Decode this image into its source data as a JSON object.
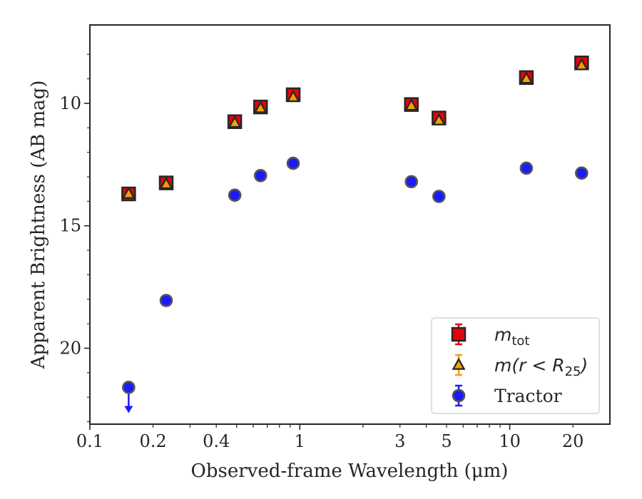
{
  "chart_data": {
    "type": "scatter",
    "title": "",
    "xlabel": "Observed-frame Wavelength (μm)",
    "ylabel": "Apparent Brightness (AB mag)",
    "x_scale": "log",
    "xlim": [
      0.1,
      30
    ],
    "ylim": [
      23.1,
      6.8
    ],
    "y_inverted": true,
    "grid": false,
    "legend_position": "lower-right",
    "x_tick_labels": [
      "0.1",
      "0.2",
      "0.4",
      "1",
      "3",
      "5",
      "10",
      "20"
    ],
    "y_tick_labels": [
      "10",
      "15",
      "20"
    ],
    "series": [
      {
        "name": "m_tot",
        "legend_label": {
          "base": "m",
          "sub": "tot",
          "rest": ""
        },
        "marker": "square",
        "color": "#e8000b",
        "x": [
          0.153,
          0.231,
          0.49,
          0.65,
          0.93,
          3.4,
          4.6,
          12.0,
          22.0
        ],
        "y": [
          13.7,
          13.25,
          10.75,
          10.15,
          9.65,
          10.05,
          10.6,
          8.95,
          8.35
        ]
      },
      {
        "name": "m(r < R_25)",
        "legend_label": {
          "base": "m(r < R",
          "sub": "25",
          "rest": ")"
        },
        "marker": "triangle",
        "color": "#f5a000",
        "x": [
          0.153,
          0.231,
          0.49,
          0.65,
          0.93,
          3.4,
          4.6,
          12.0,
          22.0
        ],
        "y": [
          13.7,
          13.3,
          10.8,
          10.2,
          9.75,
          10.1,
          10.7,
          9.0,
          8.45
        ]
      },
      {
        "name": "Tractor",
        "legend_label": {
          "base": "Tractor",
          "sub": "",
          "rest": ""
        },
        "marker": "circle",
        "color": "#1a1aff",
        "x": [
          0.153,
          0.231,
          0.49,
          0.65,
          0.93,
          3.4,
          4.6,
          12.0,
          22.0
        ],
        "y": [
          21.6,
          18.05,
          13.75,
          12.95,
          12.45,
          13.2,
          13.8,
          12.65,
          12.85
        ],
        "upper_limit_index": 0
      }
    ]
  }
}
